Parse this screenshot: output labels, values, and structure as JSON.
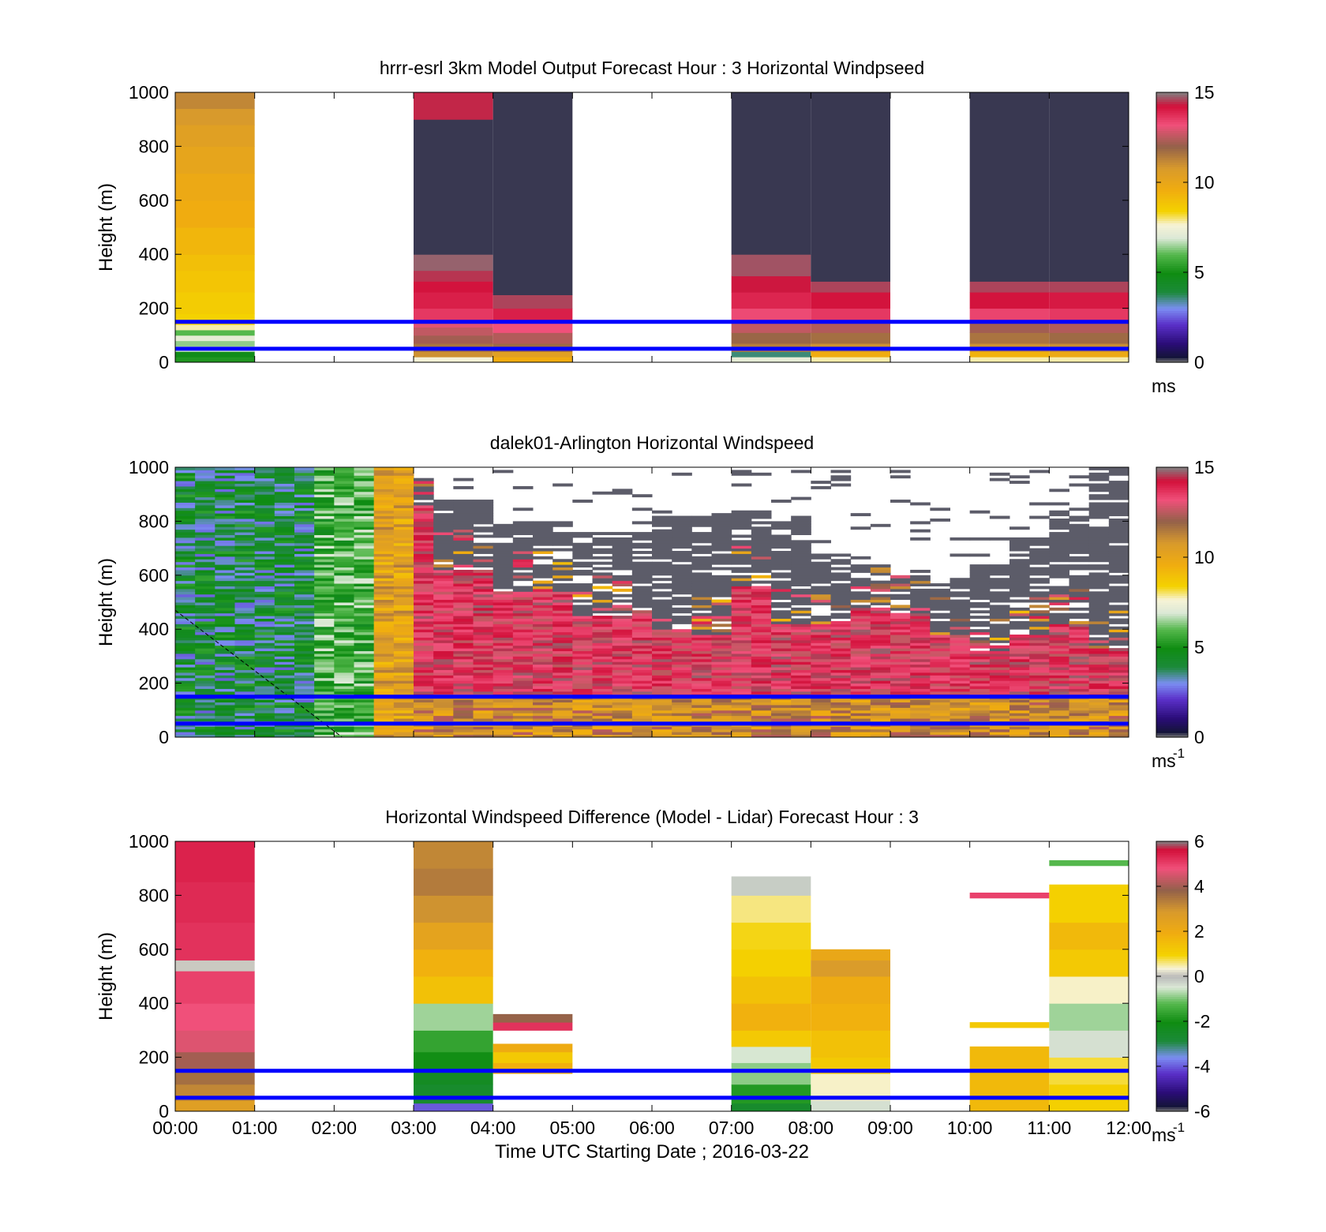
{
  "colormaps": {
    "speed": {
      "range": [
        0,
        15
      ],
      "stops": [
        [
          0.0,
          "#808080"
        ],
        [
          0.02,
          "#15143a"
        ],
        [
          0.07,
          "#2a0d77"
        ],
        [
          0.14,
          "#5a2fc8"
        ],
        [
          0.2,
          "#7b8ef2"
        ],
        [
          0.26,
          "#1c8a3a"
        ],
        [
          0.33,
          "#0f8c12"
        ],
        [
          0.4,
          "#55b84d"
        ],
        [
          0.46,
          "#dbe8d6"
        ],
        [
          0.51,
          "#f7f3d6"
        ],
        [
          0.56,
          "#f4d200"
        ],
        [
          0.64,
          "#f0ac10"
        ],
        [
          0.72,
          "#d89a2c"
        ],
        [
          0.8,
          "#93614a"
        ],
        [
          0.88,
          "#f0507a"
        ],
        [
          0.95,
          "#d2103a"
        ],
        [
          1.0,
          "#808080"
        ]
      ]
    },
    "difference": {
      "range": [
        -6,
        6
      ],
      "stops": [
        [
          0.0,
          "#808080"
        ],
        [
          0.02,
          "#15143a"
        ],
        [
          0.07,
          "#2a0d77"
        ],
        [
          0.14,
          "#5a2fc8"
        ],
        [
          0.2,
          "#7b8ef2"
        ],
        [
          0.26,
          "#1c8a3a"
        ],
        [
          0.33,
          "#0f8c12"
        ],
        [
          0.4,
          "#55b84d"
        ],
        [
          0.46,
          "#dbe8d6"
        ],
        [
          0.5,
          "#b9b9b9"
        ],
        [
          0.53,
          "#f7f3d6"
        ],
        [
          0.58,
          "#f4d200"
        ],
        [
          0.66,
          "#f0ac10"
        ],
        [
          0.74,
          "#d89a2c"
        ],
        [
          0.82,
          "#93614a"
        ],
        [
          0.9,
          "#f0507a"
        ],
        [
          0.97,
          "#d2103a"
        ],
        [
          1.0,
          "#808080"
        ]
      ]
    },
    "overlay_line_color": "#0000ff"
  },
  "chart_data": [
    {
      "type": "heatmap",
      "title": "hrrr-esrl 3km Model Output   Forecast Hour : 3 Horizontal Windpseed",
      "ylabel": "Height (m)",
      "xlabel": "",
      "ylim": [
        0,
        1000
      ],
      "yticks": [
        "0",
        "200",
        "400",
        "600",
        "800",
        "1000"
      ],
      "xlim_hours": [
        0,
        12
      ],
      "colorbar": {
        "map": "speed",
        "ticks": [
          "0",
          "5",
          "10",
          "15"
        ],
        "unit": "ms",
        "unit_sup": ""
      },
      "reference_lines_m": [
        50,
        150
      ],
      "columns": [
        {
          "t0": 0,
          "t1": 1,
          "cells": [
            [
              0,
              20,
              5.2
            ],
            [
              20,
              40,
              4.8
            ],
            [
              40,
              60,
              6.8
            ],
            [
              60,
              80,
              6.4
            ],
            [
              80,
              100,
              7.2
            ],
            [
              100,
              120,
              6.0
            ],
            [
              120,
              140,
              7.8
            ],
            [
              140,
              180,
              8.4
            ],
            [
              180,
              260,
              8.6
            ],
            [
              260,
              340,
              8.8
            ],
            [
              340,
              400,
              9.0
            ],
            [
              400,
              500,
              9.3
            ],
            [
              500,
              600,
              9.6
            ],
            [
              600,
              700,
              9.8
            ],
            [
              700,
              800,
              10.1
            ],
            [
              800,
              880,
              10.4
            ],
            [
              880,
              940,
              10.8
            ],
            [
              940,
              1000,
              11.2
            ]
          ]
        },
        {
          "t0": 3,
          "t1": 4,
          "cells": [
            [
              0,
              20,
              7.6
            ],
            [
              20,
              40,
              11.0
            ],
            [
              40,
              70,
              11.6
            ],
            [
              70,
              100,
              12.2
            ],
            [
              100,
              130,
              12.6
            ],
            [
              130,
              150,
              13.0
            ],
            [
              150,
              200,
              13.6
            ],
            [
              200,
              260,
              14.0
            ],
            [
              260,
              300,
              14.2
            ],
            [
              300,
              340,
              14.5
            ],
            [
              340,
              400,
              14.8
            ],
            [
              400,
              900,
              0.2
            ],
            [
              900,
              1000,
              14.4
            ]
          ]
        },
        {
          "t0": 4,
          "t1": 5,
          "cells": [
            [
              0,
              20,
              9.6
            ],
            [
              20,
              40,
              10.4
            ],
            [
              40,
              70,
              11.8
            ],
            [
              70,
              110,
              12.4
            ],
            [
              110,
              150,
              13.2
            ],
            [
              150,
              200,
              14.0
            ],
            [
              200,
              250,
              14.6
            ],
            [
              250,
              1000,
              0.2
            ]
          ]
        },
        {
          "t0": 7,
          "t1": 8,
          "cells": [
            [
              0,
              20,
              7.2
            ],
            [
              20,
              40,
              3.6
            ],
            [
              40,
              70,
              11.4
            ],
            [
              70,
              110,
              11.9
            ],
            [
              110,
              150,
              12.6
            ],
            [
              150,
              200,
              13.3
            ],
            [
              200,
              260,
              13.9
            ],
            [
              260,
              320,
              14.3
            ],
            [
              320,
              400,
              14.7
            ],
            [
              400,
              1000,
              0.2
            ]
          ]
        },
        {
          "t0": 8,
          "t1": 9,
          "cells": [
            [
              0,
              20,
              7.8
            ],
            [
              20,
              40,
              9.6
            ],
            [
              40,
              70,
              11.0
            ],
            [
              70,
              110,
              11.7
            ],
            [
              110,
              150,
              12.4
            ],
            [
              150,
              200,
              13.6
            ],
            [
              200,
              260,
              14.2
            ],
            [
              260,
              300,
              14.6
            ],
            [
              300,
              1000,
              0.2
            ]
          ]
        },
        {
          "t0": 10,
          "t1": 11,
          "cells": [
            [
              0,
              20,
              7.8
            ],
            [
              20,
              40,
              9.4
            ],
            [
              40,
              70,
              11.0
            ],
            [
              70,
              110,
              11.6
            ],
            [
              110,
              150,
              12.2
            ],
            [
              150,
              200,
              13.4
            ],
            [
              200,
              260,
              14.2
            ],
            [
              260,
              300,
              14.6
            ],
            [
              300,
              1000,
              0.2
            ]
          ]
        },
        {
          "t0": 11,
          "t1": 12,
          "cells": [
            [
              0,
              20,
              7.8
            ],
            [
              20,
              40,
              9.8
            ],
            [
              40,
              70,
              11.1
            ],
            [
              70,
              110,
              11.8
            ],
            [
              110,
              150,
              12.4
            ],
            [
              150,
              200,
              13.6
            ],
            [
              200,
              260,
              14.1
            ],
            [
              260,
              300,
              14.6
            ],
            [
              300,
              1000,
              0.2
            ]
          ]
        }
      ]
    },
    {
      "type": "heatmap",
      "title": "dalek01-Arlington  Horizontal Windspeed",
      "ylabel": "Height (m)",
      "xlabel": "",
      "ylim": [
        0,
        1000
      ],
      "yticks": [
        "0",
        "200",
        "400",
        "600",
        "800",
        "1000"
      ],
      "xlim_hours": [
        0,
        12
      ],
      "colorbar": {
        "map": "speed",
        "ticks": [
          "0",
          "5",
          "10",
          "15"
        ],
        "unit": "ms",
        "unit_sup": "-1"
      },
      "reference_lines_m": [
        50,
        150
      ],
      "profile_width_hours": 0.25,
      "low_gap": [
        [
          0,
          2.5,
          1000
        ],
        [
          2.5,
          3.25,
          860
        ],
        [
          3.25,
          4,
          620
        ],
        [
          4,
          5,
          540
        ],
        [
          5,
          6,
          450
        ],
        [
          6,
          6.5,
          400
        ],
        [
          6.5,
          7,
          380
        ],
        [
          7,
          7.5,
          560
        ],
        [
          7.5,
          8,
          420
        ],
        [
          8,
          8.5,
          420
        ],
        [
          8.5,
          9,
          480
        ],
        [
          9,
          9.5,
          460
        ],
        [
          9.5,
          10,
          380
        ],
        [
          10,
          10.5,
          320
        ],
        [
          10.5,
          11,
          380
        ],
        [
          11,
          11.5,
          420
        ],
        [
          11.5,
          12,
          330
        ]
      ],
      "high_gap": [
        [
          0,
          3,
          1000
        ],
        [
          3,
          3.25,
          970
        ],
        [
          3.25,
          4,
          880
        ],
        [
          4,
          5,
          800
        ],
        [
          5,
          6,
          760
        ],
        [
          6,
          7,
          820
        ],
        [
          7,
          7.5,
          840
        ],
        [
          7.5,
          8,
          820
        ],
        [
          8,
          8.5,
          680
        ],
        [
          8.5,
          9,
          640
        ],
        [
          9,
          9.5,
          600
        ],
        [
          9.5,
          10,
          580
        ],
        [
          10,
          10.5,
          640
        ],
        [
          10.5,
          11,
          740
        ],
        [
          11,
          11.5,
          860
        ],
        [
          11.5,
          12,
          1000
        ]
      ]
    },
    {
      "type": "heatmap",
      "title": "Horizontal Windspeed Difference (Model - Lidar) Forecast Hour : 3",
      "ylabel": "Height (m)",
      "xlabel": "Time UTC  Starting Date ; 2016-03-22",
      "ylim": [
        0,
        1000
      ],
      "yticks": [
        "0",
        "200",
        "400",
        "600",
        "800",
        "1000"
      ],
      "xticks": [
        "00:00",
        "01:00",
        "02:00",
        "03:00",
        "04:00",
        "05:00",
        "06:00",
        "07:00",
        "08:00",
        "09:00",
        "10:00",
        "11:00",
        "12:00"
      ],
      "xlim_hours": [
        0,
        12
      ],
      "colorbar": {
        "map": "difference",
        "ticks": [
          "-6",
          "-4",
          "-2",
          "0",
          "2",
          "4",
          "6"
        ],
        "unit": "ms",
        "unit_sup": "-1"
      },
      "reference_lines_m": [
        50,
        150
      ],
      "columns": [
        {
          "t0": 0,
          "t1": 1,
          "cells": [
            [
              0,
              40,
              2.6
            ],
            [
              40,
              100,
              3.2
            ],
            [
              100,
              160,
              3.6
            ],
            [
              160,
              220,
              4.0
            ],
            [
              220,
              300,
              4.6
            ],
            [
              300,
              400,
              4.8
            ],
            [
              400,
              520,
              5.0
            ],
            [
              520,
              560,
              0.1
            ],
            [
              560,
              700,
              5.2
            ],
            [
              700,
              850,
              5.3
            ],
            [
              850,
              1000,
              5.4
            ]
          ]
        },
        {
          "t0": 3,
          "t1": 4,
          "cells": [
            [
              0,
              30,
              -4.0
            ],
            [
              30,
              100,
              -2.6
            ],
            [
              100,
              160,
              -2.4
            ],
            [
              160,
              220,
              -2.0
            ],
            [
              220,
              300,
              -1.6
            ],
            [
              300,
              400,
              -0.8
            ],
            [
              400,
              500,
              1.4
            ],
            [
              500,
              600,
              1.8
            ],
            [
              600,
              700,
              2.4
            ],
            [
              700,
              800,
              3.0
            ],
            [
              800,
              900,
              3.4
            ],
            [
              900,
              1000,
              3.2
            ]
          ]
        },
        {
          "t0": 4,
          "t1": 5,
          "cells": [
            [
              140,
              180,
              1.8
            ],
            [
              180,
              220,
              1.2
            ],
            [
              220,
              250,
              2.0
            ],
            [
              300,
              330,
              5.2
            ],
            [
              330,
              360,
              3.8
            ]
          ]
        },
        {
          "t0": 7,
          "t1": 8,
          "cells": [
            [
              0,
              30,
              -2.6
            ],
            [
              30,
              100,
              -1.8
            ],
            [
              100,
              180,
              -0.9
            ],
            [
              180,
              240,
              -0.5
            ],
            [
              240,
              300,
              1.2
            ],
            [
              300,
              400,
              1.8
            ],
            [
              400,
              500,
              1.4
            ],
            [
              500,
              600,
              1.0
            ],
            [
              600,
              700,
              0.9
            ],
            [
              700,
              800,
              0.6
            ],
            [
              800,
              870,
              -0.2
            ]
          ]
        },
        {
          "t0": 8,
          "t1": 9,
          "cells": [
            [
              0,
              40,
              -0.4
            ],
            [
              40,
              140,
              0.4
            ],
            [
              140,
              200,
              1.2
            ],
            [
              200,
              300,
              1.4
            ],
            [
              300,
              400,
              1.8
            ],
            [
              400,
              500,
              2.0
            ],
            [
              500,
              560,
              2.8
            ],
            [
              560,
              600,
              2.2
            ]
          ]
        },
        {
          "t0": 10,
          "t1": 11,
          "cells": [
            [
              0,
              240,
              1.6
            ],
            [
              310,
              330,
              1.2
            ],
            [
              790,
              810,
              5.0
            ]
          ]
        },
        {
          "t0": 11,
          "t1": 12,
          "cells": [
            [
              0,
              100,
              1.0
            ],
            [
              100,
              200,
              0.8
            ],
            [
              200,
              300,
              -0.4
            ],
            [
              300,
              400,
              -0.8
            ],
            [
              400,
              500,
              0.4
            ],
            [
              500,
              600,
              1.2
            ],
            [
              600,
              700,
              1.6
            ],
            [
              700,
              840,
              1.0
            ],
            [
              910,
              930,
              -1.2
            ]
          ]
        }
      ]
    }
  ]
}
